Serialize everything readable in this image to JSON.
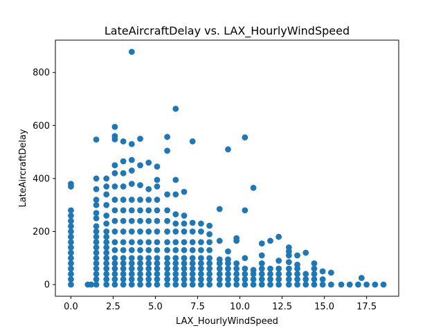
{
  "chart_data": {
    "type": "scatter",
    "title": "LateAircraftDelay vs. LAX_HourlyWindSpeed",
    "xlabel": "LAX_HourlyWindSpeed",
    "ylabel": "LateAircraftDelay",
    "xlim": [
      -0.92,
      19.4
    ],
    "ylim": [
      -44,
      922
    ],
    "xticks": [
      0.0,
      2.5,
      5.0,
      7.5,
      10.0,
      12.5,
      15.0,
      17.5
    ],
    "xtick_labels": [
      "0.0",
      "2.5",
      "5.0",
      "7.5",
      "10.0",
      "12.5",
      "15.0",
      "17.5"
    ],
    "yticks": [
      0,
      200,
      400,
      600,
      800
    ],
    "ytick_labels": [
      "0",
      "200",
      "400",
      "600",
      "800"
    ],
    "grid": false,
    "legend": "none",
    "marker_color": "#1f77b4",
    "series": [
      {
        "points": [
          [
            0,
            0
          ],
          [
            0,
            20
          ],
          [
            0,
            40
          ],
          [
            0,
            60
          ],
          [
            0,
            80
          ],
          [
            0,
            100
          ],
          [
            0,
            120
          ],
          [
            0,
            140
          ],
          [
            0,
            160
          ],
          [
            0,
            180
          ],
          [
            0,
            200
          ],
          [
            0,
            220
          ],
          [
            0,
            240
          ],
          [
            0,
            260
          ],
          [
            0,
            280
          ],
          [
            0,
            370
          ],
          [
            0,
            380
          ],
          [
            1,
            0
          ],
          [
            1.2,
            0
          ],
          [
            1.5,
            0
          ],
          [
            1.5,
            20
          ],
          [
            1.5,
            40
          ],
          [
            1.5,
            60
          ],
          [
            1.5,
            80
          ],
          [
            1.5,
            100
          ],
          [
            1.5,
            120
          ],
          [
            1.5,
            140
          ],
          [
            1.5,
            160
          ],
          [
            1.5,
            180
          ],
          [
            1.5,
            200
          ],
          [
            1.5,
            220
          ],
          [
            1.5,
            250
          ],
          [
            1.5,
            270
          ],
          [
            1.5,
            300
          ],
          [
            1.5,
            320
          ],
          [
            1.5,
            360
          ],
          [
            1.5,
            400
          ],
          [
            1.5,
            547
          ],
          [
            2.1,
            0
          ],
          [
            2.1,
            20
          ],
          [
            2.1,
            40
          ],
          [
            2.1,
            60
          ],
          [
            2.1,
            80
          ],
          [
            2.1,
            100
          ],
          [
            2.1,
            120
          ],
          [
            2.1,
            140
          ],
          [
            2.1,
            160
          ],
          [
            2.1,
            180
          ],
          [
            2.1,
            200
          ],
          [
            2.1,
            230
          ],
          [
            2.1,
            260
          ],
          [
            2.1,
            300
          ],
          [
            2.1,
            340
          ],
          [
            2.1,
            370
          ],
          [
            2.1,
            400
          ],
          [
            2.6,
            0
          ],
          [
            2.6,
            20
          ],
          [
            2.6,
            40
          ],
          [
            2.6,
            60
          ],
          [
            2.6,
            80
          ],
          [
            2.6,
            100
          ],
          [
            2.6,
            130
          ],
          [
            2.6,
            160
          ],
          [
            2.6,
            200
          ],
          [
            2.6,
            240
          ],
          [
            2.6,
            280
          ],
          [
            2.6,
            320
          ],
          [
            2.6,
            370
          ],
          [
            2.6,
            420
          ],
          [
            2.6,
            450
          ],
          [
            2.6,
            548
          ],
          [
            2.6,
            560
          ],
          [
            2.6,
            595
          ],
          [
            3.1,
            0
          ],
          [
            3.1,
            20
          ],
          [
            3.1,
            40
          ],
          [
            3.1,
            60
          ],
          [
            3.1,
            80
          ],
          [
            3.1,
            100
          ],
          [
            3.1,
            130
          ],
          [
            3.1,
            160
          ],
          [
            3.1,
            200
          ],
          [
            3.1,
            240
          ],
          [
            3.1,
            280
          ],
          [
            3.1,
            320
          ],
          [
            3.1,
            370
          ],
          [
            3.1,
            420
          ],
          [
            3.1,
            465
          ],
          [
            3.1,
            540
          ],
          [
            3.6,
            0
          ],
          [
            3.6,
            20
          ],
          [
            3.6,
            40
          ],
          [
            3.6,
            60
          ],
          [
            3.6,
            80
          ],
          [
            3.6,
            100
          ],
          [
            3.6,
            130
          ],
          [
            3.6,
            160
          ],
          [
            3.6,
            200
          ],
          [
            3.6,
            240
          ],
          [
            3.6,
            280
          ],
          [
            3.6,
            320
          ],
          [
            3.6,
            380
          ],
          [
            3.6,
            430
          ],
          [
            3.6,
            470
          ],
          [
            3.6,
            530
          ],
          [
            3.6,
            878
          ],
          [
            4.1,
            0
          ],
          [
            4.1,
            20
          ],
          [
            4.1,
            40
          ],
          [
            4.1,
            60
          ],
          [
            4.1,
            80
          ],
          [
            4.1,
            100
          ],
          [
            4.1,
            130
          ],
          [
            4.1,
            160
          ],
          [
            4.1,
            200
          ],
          [
            4.1,
            240
          ],
          [
            4.1,
            280
          ],
          [
            4.1,
            320
          ],
          [
            4.1,
            375
          ],
          [
            4.1,
            450
          ],
          [
            4.1,
            550
          ],
          [
            4.6,
            0
          ],
          [
            4.6,
            20
          ],
          [
            4.6,
            40
          ],
          [
            4.6,
            60
          ],
          [
            4.6,
            80
          ],
          [
            4.6,
            100
          ],
          [
            4.6,
            130
          ],
          [
            4.6,
            160
          ],
          [
            4.6,
            200
          ],
          [
            4.6,
            240
          ],
          [
            4.6,
            280
          ],
          [
            4.6,
            320
          ],
          [
            4.6,
            360
          ],
          [
            4.6,
            460
          ],
          [
            5.1,
            0
          ],
          [
            5.1,
            20
          ],
          [
            5.1,
            40
          ],
          [
            5.1,
            60
          ],
          [
            5.1,
            80
          ],
          [
            5.1,
            100
          ],
          [
            5.1,
            130
          ],
          [
            5.1,
            160
          ],
          [
            5.1,
            200
          ],
          [
            5.1,
            240
          ],
          [
            5.1,
            280
          ],
          [
            5.1,
            320
          ],
          [
            5.1,
            370
          ],
          [
            5.1,
            395
          ],
          [
            5.1,
            445
          ],
          [
            5.7,
            0
          ],
          [
            5.7,
            20
          ],
          [
            5.7,
            40
          ],
          [
            5.7,
            60
          ],
          [
            5.7,
            80
          ],
          [
            5.7,
            100
          ],
          [
            5.7,
            130
          ],
          [
            5.7,
            160
          ],
          [
            5.7,
            200
          ],
          [
            5.7,
            240
          ],
          [
            5.7,
            280
          ],
          [
            5.7,
            340
          ],
          [
            5.7,
            505
          ],
          [
            5.7,
            557
          ],
          [
            6.2,
            0
          ],
          [
            6.2,
            20
          ],
          [
            6.2,
            40
          ],
          [
            6.2,
            60
          ],
          [
            6.2,
            80
          ],
          [
            6.2,
            100
          ],
          [
            6.2,
            130
          ],
          [
            6.2,
            160
          ],
          [
            6.2,
            200
          ],
          [
            6.2,
            230
          ],
          [
            6.2,
            265
          ],
          [
            6.2,
            340
          ],
          [
            6.2,
            395
          ],
          [
            6.2,
            663
          ],
          [
            6.7,
            0
          ],
          [
            6.7,
            20
          ],
          [
            6.7,
            40
          ],
          [
            6.7,
            60
          ],
          [
            6.7,
            80
          ],
          [
            6.7,
            100
          ],
          [
            6.7,
            130
          ],
          [
            6.7,
            160
          ],
          [
            6.7,
            200
          ],
          [
            6.7,
            230
          ],
          [
            6.7,
            260
          ],
          [
            6.7,
            350
          ],
          [
            7.2,
            0
          ],
          [
            7.2,
            20
          ],
          [
            7.2,
            40
          ],
          [
            7.2,
            60
          ],
          [
            7.2,
            80
          ],
          [
            7.2,
            100
          ],
          [
            7.2,
            130
          ],
          [
            7.2,
            160
          ],
          [
            7.2,
            200
          ],
          [
            7.2,
            233
          ],
          [
            7.2,
            540
          ],
          [
            7.7,
            0
          ],
          [
            7.7,
            20
          ],
          [
            7.7,
            40
          ],
          [
            7.7,
            60
          ],
          [
            7.7,
            80
          ],
          [
            7.7,
            100
          ],
          [
            7.7,
            130
          ],
          [
            7.7,
            160
          ],
          [
            7.7,
            200
          ],
          [
            7.7,
            230
          ],
          [
            8.2,
            0
          ],
          [
            8.2,
            20
          ],
          [
            8.2,
            40
          ],
          [
            8.2,
            60
          ],
          [
            8.2,
            80
          ],
          [
            8.2,
            100
          ],
          [
            8.2,
            130
          ],
          [
            8.2,
            160
          ],
          [
            8.2,
            190
          ],
          [
            8.2,
            222
          ],
          [
            8.8,
            0
          ],
          [
            8.8,
            20
          ],
          [
            8.8,
            40
          ],
          [
            8.8,
            60
          ],
          [
            8.8,
            80
          ],
          [
            8.8,
            95
          ],
          [
            8.8,
            165
          ],
          [
            8.8,
            285
          ],
          [
            9.3,
            0
          ],
          [
            9.3,
            20
          ],
          [
            9.3,
            40
          ],
          [
            9.3,
            60
          ],
          [
            9.3,
            80
          ],
          [
            9.3,
            95
          ],
          [
            9.3,
            125
          ],
          [
            9.3,
            510
          ],
          [
            9.8,
            0
          ],
          [
            9.8,
            20
          ],
          [
            9.8,
            40
          ],
          [
            9.8,
            60
          ],
          [
            9.8,
            80
          ],
          [
            9.8,
            165
          ],
          [
            9.8,
            175
          ],
          [
            10.3,
            0
          ],
          [
            10.3,
            20
          ],
          [
            10.3,
            40
          ],
          [
            10.3,
            60
          ],
          [
            10.3,
            100
          ],
          [
            10.3,
            280
          ],
          [
            10.3,
            555
          ],
          [
            10.8,
            0
          ],
          [
            10.8,
            20
          ],
          [
            10.8,
            40
          ],
          [
            10.8,
            55
          ],
          [
            10.8,
            365
          ],
          [
            11.3,
            0
          ],
          [
            11.3,
            20
          ],
          [
            11.3,
            40
          ],
          [
            11.3,
            60
          ],
          [
            11.3,
            80
          ],
          [
            11.3,
            110
          ],
          [
            11.3,
            155
          ],
          [
            11.8,
            0
          ],
          [
            11.8,
            20
          ],
          [
            11.8,
            40
          ],
          [
            11.8,
            60
          ],
          [
            11.8,
            165
          ],
          [
            12.3,
            0
          ],
          [
            12.3,
            20
          ],
          [
            12.3,
            40
          ],
          [
            12.3,
            60
          ],
          [
            12.3,
            90
          ],
          [
            12.3,
            180
          ],
          [
            12.9,
            0
          ],
          [
            12.9,
            20
          ],
          [
            12.9,
            40
          ],
          [
            12.9,
            60
          ],
          [
            12.9,
            85
          ],
          [
            12.9,
            110
          ],
          [
            12.9,
            125
          ],
          [
            12.9,
            140
          ],
          [
            13.4,
            0
          ],
          [
            13.4,
            20
          ],
          [
            13.4,
            40
          ],
          [
            13.4,
            60
          ],
          [
            13.4,
            75
          ],
          [
            13.4,
            110
          ],
          [
            13.9,
            0
          ],
          [
            13.9,
            20
          ],
          [
            13.9,
            40
          ],
          [
            13.9,
            120
          ],
          [
            14.4,
            0
          ],
          [
            14.4,
            20
          ],
          [
            14.4,
            40
          ],
          [
            14.4,
            60
          ],
          [
            14.4,
            80
          ],
          [
            14.9,
            0
          ],
          [
            14.9,
            20
          ],
          [
            14.9,
            50
          ],
          [
            15.4,
            0
          ],
          [
            15.4,
            45
          ],
          [
            16,
            0
          ],
          [
            16.5,
            0
          ],
          [
            17,
            0
          ],
          [
            17.2,
            25
          ],
          [
            17.5,
            0
          ],
          [
            18,
            0
          ],
          [
            18.5,
            0
          ]
        ]
      }
    ]
  }
}
